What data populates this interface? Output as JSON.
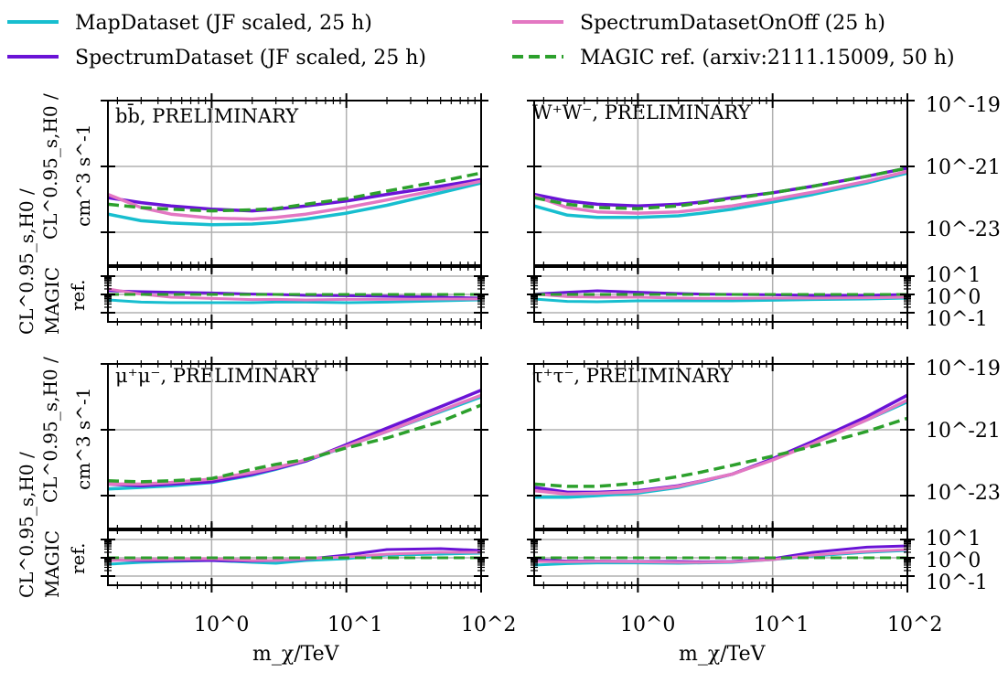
{
  "legend": {
    "entries": [
      {
        "key": "map",
        "label": "MapDataset (JF scaled, 25 h)",
        "color": "#17becf",
        "dashed": false
      },
      {
        "key": "spec",
        "label": "SpectrumDataset (JF scaled, 25 h)",
        "color": "#6a13d6",
        "dashed": false
      },
      {
        "key": "onoff",
        "label": "SpectrumDatasetOnOff (25 h)",
        "color": "#e377c2",
        "dashed": false
      },
      {
        "key": "magic",
        "label": "MAGIC ref. (arxiv:2111.15009, 50 h)",
        "color": "#2ca02c",
        "dashed": true
      }
    ]
  },
  "axes": {
    "xlabel": "m_χ/TeV",
    "xticks": [
      "10^0",
      "10^1",
      "10^2"
    ],
    "xlim": [
      0.17,
      100
    ],
    "main_ylabel_line1": "CL^0.95_s,H0 /",
    "main_ylabel_line2": "cm^3 s^-1",
    "ratio_ylabel_line1": "CL^0.95_s,H0 /",
    "ratio_ylabel_line2": "MAGIC",
    "ratio_ylabel_line3": "ref.",
    "main_ylim_log10": [
      -24,
      -19
    ],
    "main_yticks": [
      "10^-19",
      "10^-21",
      "10^-23"
    ],
    "ratio_ylim_log10": [
      -1.5,
      1.5
    ],
    "ratio_yticks": [
      "10^1",
      "10^0",
      "10^-1"
    ]
  },
  "chart_data": [
    {
      "type": "line",
      "title": "bb̄, PRELIMINARY",
      "xlabel": "m_χ/TeV",
      "ylabel": "CL^0.95_s,H0 / cm^3 s^-1",
      "x": [
        0.17,
        0.3,
        0.5,
        1,
        2,
        3,
        5,
        10,
        20,
        50,
        100
      ],
      "series": [
        {
          "name": "MapDataset (JF scaled, 25 h)",
          "values": [
            -22.45,
            -22.65,
            -22.72,
            -22.77,
            -22.75,
            -22.7,
            -22.6,
            -22.42,
            -22.18,
            -21.8,
            -21.5
          ]
        },
        {
          "name": "SpectrumDataset (JF scaled, 25 h)",
          "values": [
            -21.95,
            -22.1,
            -22.2,
            -22.3,
            -22.35,
            -22.3,
            -22.2,
            -22.05,
            -21.85,
            -21.6,
            -21.4
          ]
        },
        {
          "name": "SpectrumDatasetOnOff (25 h)",
          "values": [
            -21.85,
            -22.25,
            -22.45,
            -22.57,
            -22.6,
            -22.55,
            -22.45,
            -22.25,
            -22.02,
            -21.7,
            -21.45
          ]
        },
        {
          "name": "MAGIC ref. (arxiv:2111.15009, 50 h)",
          "values": [
            -22.15,
            -22.25,
            -22.3,
            -22.35,
            -22.32,
            -22.28,
            -22.15,
            -21.98,
            -21.75,
            -21.45,
            -21.2
          ]
        }
      ],
      "ratio": [
        [
          -0.3,
          -0.42,
          -0.45,
          -0.45,
          -0.45,
          -0.42,
          -0.42,
          -0.45,
          -0.42,
          -0.35,
          -0.3
        ],
        [
          0.2,
          0.15,
          0.12,
          0.08,
          0.02,
          0.0,
          -0.05,
          -0.07,
          -0.1,
          -0.15,
          -0.2
        ],
        [
          0.3,
          0.02,
          -0.15,
          -0.22,
          -0.28,
          -0.27,
          -0.3,
          -0.27,
          -0.27,
          -0.25,
          -0.25
        ],
        [
          0.0,
          0.0,
          0.0,
          0.0,
          0.0,
          0.0,
          0.0,
          0.0,
          0.0,
          0.0,
          0.0
        ]
      ]
    },
    {
      "type": "line",
      "title": "W⁺W⁻, PRELIMINARY",
      "xlabel": "m_χ/TeV",
      "ylabel": "",
      "x": [
        0.17,
        0.3,
        0.5,
        1,
        2,
        3,
        5,
        10,
        20,
        50,
        100
      ],
      "series": [
        {
          "name": "MapDataset (JF scaled, 25 h)",
          "values": [
            -22.2,
            -22.48,
            -22.55,
            -22.55,
            -22.5,
            -22.42,
            -22.3,
            -22.08,
            -21.85,
            -21.5,
            -21.2
          ]
        },
        {
          "name": "SpectrumDataset (JF scaled, 25 h)",
          "values": [
            -21.85,
            -22.05,
            -22.15,
            -22.2,
            -22.15,
            -22.08,
            -21.95,
            -21.8,
            -21.6,
            -21.3,
            -21.05
          ]
        },
        {
          "name": "SpectrumDatasetOnOff (25 h)",
          "values": [
            -21.9,
            -22.25,
            -22.38,
            -22.42,
            -22.38,
            -22.3,
            -22.2,
            -22.0,
            -21.78,
            -21.45,
            -21.15
          ]
        },
        {
          "name": "MAGIC ref. (arxiv:2111.15009, 50 h)",
          "values": [
            -21.95,
            -22.15,
            -22.25,
            -22.28,
            -22.2,
            -22.1,
            -21.98,
            -21.8,
            -21.6,
            -21.3,
            -21.05
          ]
        }
      ],
      "ratio": [
        [
          -0.25,
          -0.38,
          -0.4,
          -0.35,
          -0.35,
          -0.35,
          -0.35,
          -0.32,
          -0.28,
          -0.25,
          -0.2
        ],
        [
          0.02,
          0.12,
          0.2,
          0.12,
          0.05,
          0.02,
          0.0,
          -0.02,
          -0.05,
          -0.05,
          0.0
        ],
        [
          0.02,
          -0.12,
          -0.15,
          -0.15,
          -0.2,
          -0.22,
          -0.22,
          -0.2,
          -0.2,
          -0.18,
          -0.15
        ],
        [
          0.0,
          0.0,
          0.0,
          0.0,
          0.0,
          0.0,
          0.0,
          0.0,
          0.0,
          0.0,
          0.0
        ]
      ]
    },
    {
      "type": "line",
      "title": "μ⁺μ⁻, PRELIMINARY",
      "xlabel": "m_χ/TeV",
      "ylabel": "CL^0.95_s,H0 / cm^3 s^-1",
      "x": [
        0.17,
        0.3,
        0.5,
        1,
        2,
        3,
        5,
        10,
        20,
        50,
        100
      ],
      "series": [
        {
          "name": "MapDataset (JF scaled, 25 h)",
          "values": [
            -22.8,
            -22.75,
            -22.7,
            -22.6,
            -22.38,
            -22.2,
            -21.95,
            -21.5,
            -21.05,
            -20.45,
            -20.0
          ]
        },
        {
          "name": "SpectrumDataset (JF scaled, 25 h)",
          "values": [
            -22.65,
            -22.7,
            -22.65,
            -22.58,
            -22.35,
            -22.18,
            -21.95,
            -21.45,
            -20.95,
            -20.3,
            -19.8
          ]
        },
        {
          "name": "SpectrumDatasetOnOff (25 h)",
          "values": [
            -22.65,
            -22.65,
            -22.6,
            -22.5,
            -22.3,
            -22.15,
            -21.92,
            -21.5,
            -21.05,
            -20.42,
            -19.95
          ]
        },
        {
          "name": "MAGIC ref. (arxiv:2111.15009, 50 h)",
          "values": [
            -22.55,
            -22.58,
            -22.55,
            -22.48,
            -22.2,
            -22.05,
            -21.9,
            -21.55,
            -21.25,
            -20.75,
            -20.25
          ]
        }
      ],
      "ratio": [
        [
          -0.35,
          -0.25,
          -0.2,
          -0.15,
          -0.25,
          -0.3,
          -0.15,
          -0.05,
          0.15,
          0.2,
          0.25
        ],
        [
          -0.12,
          -0.15,
          -0.15,
          -0.15,
          -0.18,
          -0.15,
          -0.08,
          0.15,
          0.45,
          0.5,
          0.4
        ],
        [
          -0.15,
          -0.1,
          -0.08,
          -0.05,
          -0.15,
          -0.15,
          -0.05,
          0.05,
          0.2,
          0.3,
          0.3
        ],
        [
          0.0,
          0.0,
          0.0,
          0.0,
          0.0,
          0.0,
          0.0,
          0.0,
          0.0,
          0.0,
          0.0
        ]
      ]
    },
    {
      "type": "line",
      "title": "τ⁺τ⁻, PRELIMINARY",
      "xlabel": "m_χ/TeV",
      "ylabel": "",
      "x": [
        0.17,
        0.3,
        0.5,
        1,
        2,
        3,
        5,
        10,
        20,
        50,
        100
      ],
      "series": [
        {
          "name": "MapDataset (JF scaled, 25 h)",
          "values": [
            -23.05,
            -23.05,
            -23.0,
            -22.92,
            -22.75,
            -22.58,
            -22.35,
            -21.9,
            -21.4,
            -20.7,
            -20.15
          ]
        },
        {
          "name": "SpectrumDataset (JF scaled, 25 h)",
          "values": [
            -22.75,
            -22.9,
            -22.9,
            -22.85,
            -22.7,
            -22.55,
            -22.35,
            -21.88,
            -21.35,
            -20.6,
            -19.95
          ]
        },
        {
          "name": "SpectrumDatasetOnOff (25 h)",
          "values": [
            -22.85,
            -22.95,
            -22.93,
            -22.88,
            -22.72,
            -22.55,
            -22.35,
            -21.92,
            -21.42,
            -20.7,
            -20.1
          ]
        },
        {
          "name": "MAGIC ref. (arxiv:2111.15009, 50 h)",
          "values": [
            -22.65,
            -22.72,
            -22.72,
            -22.62,
            -22.42,
            -22.28,
            -22.08,
            -21.8,
            -21.5,
            -21.05,
            -20.65
          ]
        }
      ],
      "ratio": [
        [
          -0.4,
          -0.32,
          -0.28,
          -0.28,
          -0.3,
          -0.28,
          -0.25,
          -0.1,
          0.1,
          0.3,
          0.4
        ],
        [
          -0.1,
          -0.18,
          -0.18,
          -0.2,
          -0.2,
          -0.22,
          -0.2,
          -0.05,
          0.3,
          0.58,
          0.65
        ],
        [
          -0.2,
          -0.22,
          -0.2,
          -0.22,
          -0.25,
          -0.25,
          -0.22,
          -0.1,
          0.15,
          0.35,
          0.45
        ],
        [
          0.0,
          0.0,
          0.0,
          0.0,
          0.0,
          0.0,
          0.0,
          0.0,
          0.0,
          0.0,
          0.0
        ]
      ]
    }
  ]
}
